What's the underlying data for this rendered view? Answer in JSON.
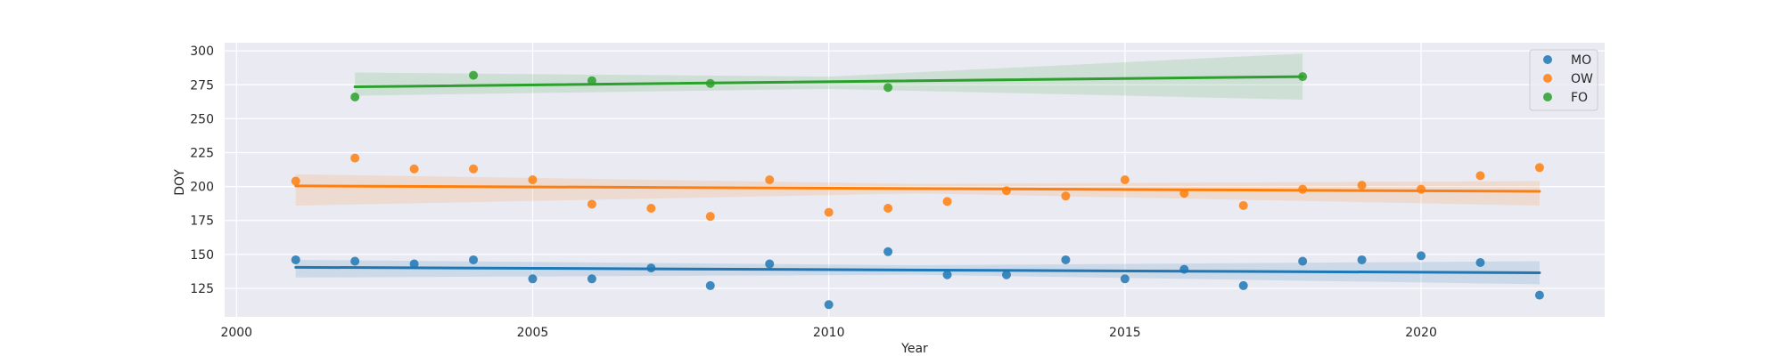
{
  "chart_data": {
    "type": "scatter",
    "xlabel": "Year",
    "ylabel": "DOY",
    "xlim": [
      1999.8,
      2023.1
    ],
    "ylim": [
      104,
      306
    ],
    "x_ticks": [
      2000,
      2005,
      2010,
      2015,
      2020
    ],
    "y_ticks": [
      125,
      150,
      175,
      200,
      225,
      250,
      275,
      300
    ],
    "grid": true,
    "legend_position": "top-right",
    "background": "#eaeaf2",
    "series": [
      {
        "name": "MO",
        "color": "#1f77b4",
        "points": [
          [
            2001,
            146
          ],
          [
            2002,
            145
          ],
          [
            2003,
            143
          ],
          [
            2004,
            146
          ],
          [
            2005,
            132
          ],
          [
            2006,
            132
          ],
          [
            2007,
            140
          ],
          [
            2008,
            127
          ],
          [
            2009,
            143
          ],
          [
            2010,
            113
          ],
          [
            2011,
            152
          ],
          [
            2012,
            135
          ],
          [
            2013,
            135
          ],
          [
            2014,
            146
          ],
          [
            2015,
            132
          ],
          [
            2016,
            139
          ],
          [
            2017,
            127
          ],
          [
            2018,
            145
          ],
          [
            2019,
            146
          ],
          [
            2020,
            149
          ],
          [
            2021,
            144
          ],
          [
            2022,
            120
          ]
        ],
        "fit": [
          [
            2001,
            140.5
          ],
          [
            2022,
            136.5
          ]
        ],
        "ci_upper": [
          [
            2001,
            146
          ],
          [
            2011.5,
            142
          ],
          [
            2022,
            145
          ]
        ],
        "ci_lower": [
          [
            2001,
            133
          ],
          [
            2011.5,
            135
          ],
          [
            2022,
            128
          ]
        ]
      },
      {
        "name": "OW",
        "color": "#ff7f0e",
        "points": [
          [
            2001,
            204
          ],
          [
            2002,
            221
          ],
          [
            2003,
            213
          ],
          [
            2004,
            213
          ],
          [
            2005,
            205
          ],
          [
            2006,
            187
          ],
          [
            2007,
            184
          ],
          [
            2008,
            178
          ],
          [
            2009,
            205
          ],
          [
            2010,
            181
          ],
          [
            2011,
            184
          ],
          [
            2012,
            189
          ],
          [
            2013,
            197
          ],
          [
            2014,
            193
          ],
          [
            2015,
            205
          ],
          [
            2016,
            195
          ],
          [
            2017,
            186
          ],
          [
            2018,
            198
          ],
          [
            2019,
            201
          ],
          [
            2020,
            198
          ],
          [
            2021,
            208
          ],
          [
            2022,
            214
          ]
        ],
        "fit": [
          [
            2001,
            200.5
          ],
          [
            2022,
            196.5
          ]
        ],
        "ci_upper": [
          [
            2001,
            209
          ],
          [
            2011.5,
            202
          ],
          [
            2022,
            204
          ]
        ],
        "ci_lower": [
          [
            2001,
            186
          ],
          [
            2011.5,
            195
          ],
          [
            2022,
            186
          ]
        ]
      },
      {
        "name": "FO",
        "color": "#2ca02c",
        "points": [
          [
            2002,
            266
          ],
          [
            2004,
            282
          ],
          [
            2006,
            278
          ],
          [
            2008,
            276
          ],
          [
            2011,
            273
          ],
          [
            2018,
            281
          ]
        ],
        "fit": [
          [
            2002,
            273.5
          ],
          [
            2018,
            281
          ]
        ],
        "ci_upper": [
          [
            2002,
            284
          ],
          [
            2010,
            281
          ],
          [
            2018,
            298
          ]
        ],
        "ci_lower": [
          [
            2002,
            267
          ],
          [
            2010,
            272
          ],
          [
            2018,
            264
          ]
        ]
      }
    ]
  }
}
